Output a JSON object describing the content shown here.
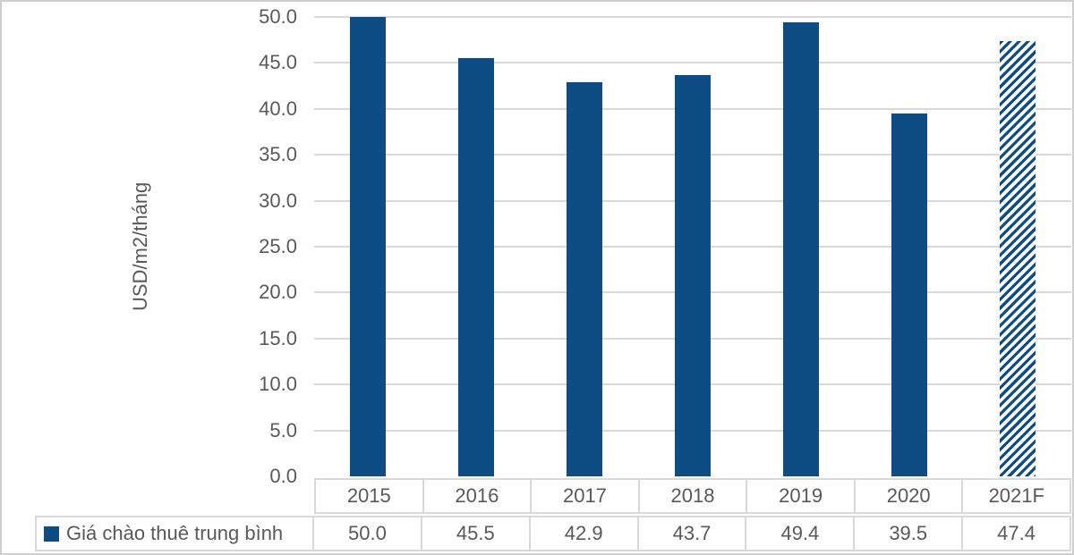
{
  "chart_data": {
    "type": "bar",
    "title": "",
    "categories": [
      "2015",
      "2016",
      "2017",
      "2018",
      "2019",
      "2020",
      "2021F"
    ],
    "series": [
      {
        "name": "Giá chào thuê trung bình",
        "values": [
          50.0,
          45.5,
          42.9,
          43.7,
          49.4,
          39.5,
          47.4
        ]
      }
    ],
    "value_labels": [
      "50.0",
      "45.5",
      "42.9",
      "43.7",
      "49.4",
      "39.5",
      "47.4"
    ],
    "xlabel": "",
    "ylabel": "USD/m2/tháng",
    "ylim": [
      0,
      50
    ],
    "ytick_step": 5,
    "ytick_labels": [
      "0.0",
      "5.0",
      "10.0",
      "15.0",
      "20.0",
      "25.0",
      "30.0",
      "35.0",
      "40.0",
      "45.0",
      "50.0"
    ],
    "grid": true,
    "legend_position": "bottom-left-data-table",
    "hatched_categories": [
      "2021F"
    ],
    "colors": {
      "bar": "#0D4D84",
      "gridline": "#D9D9D9",
      "table_border": "#D9D9D9",
      "axis_text": "#595959",
      "background": "#FFFFFF"
    }
  }
}
